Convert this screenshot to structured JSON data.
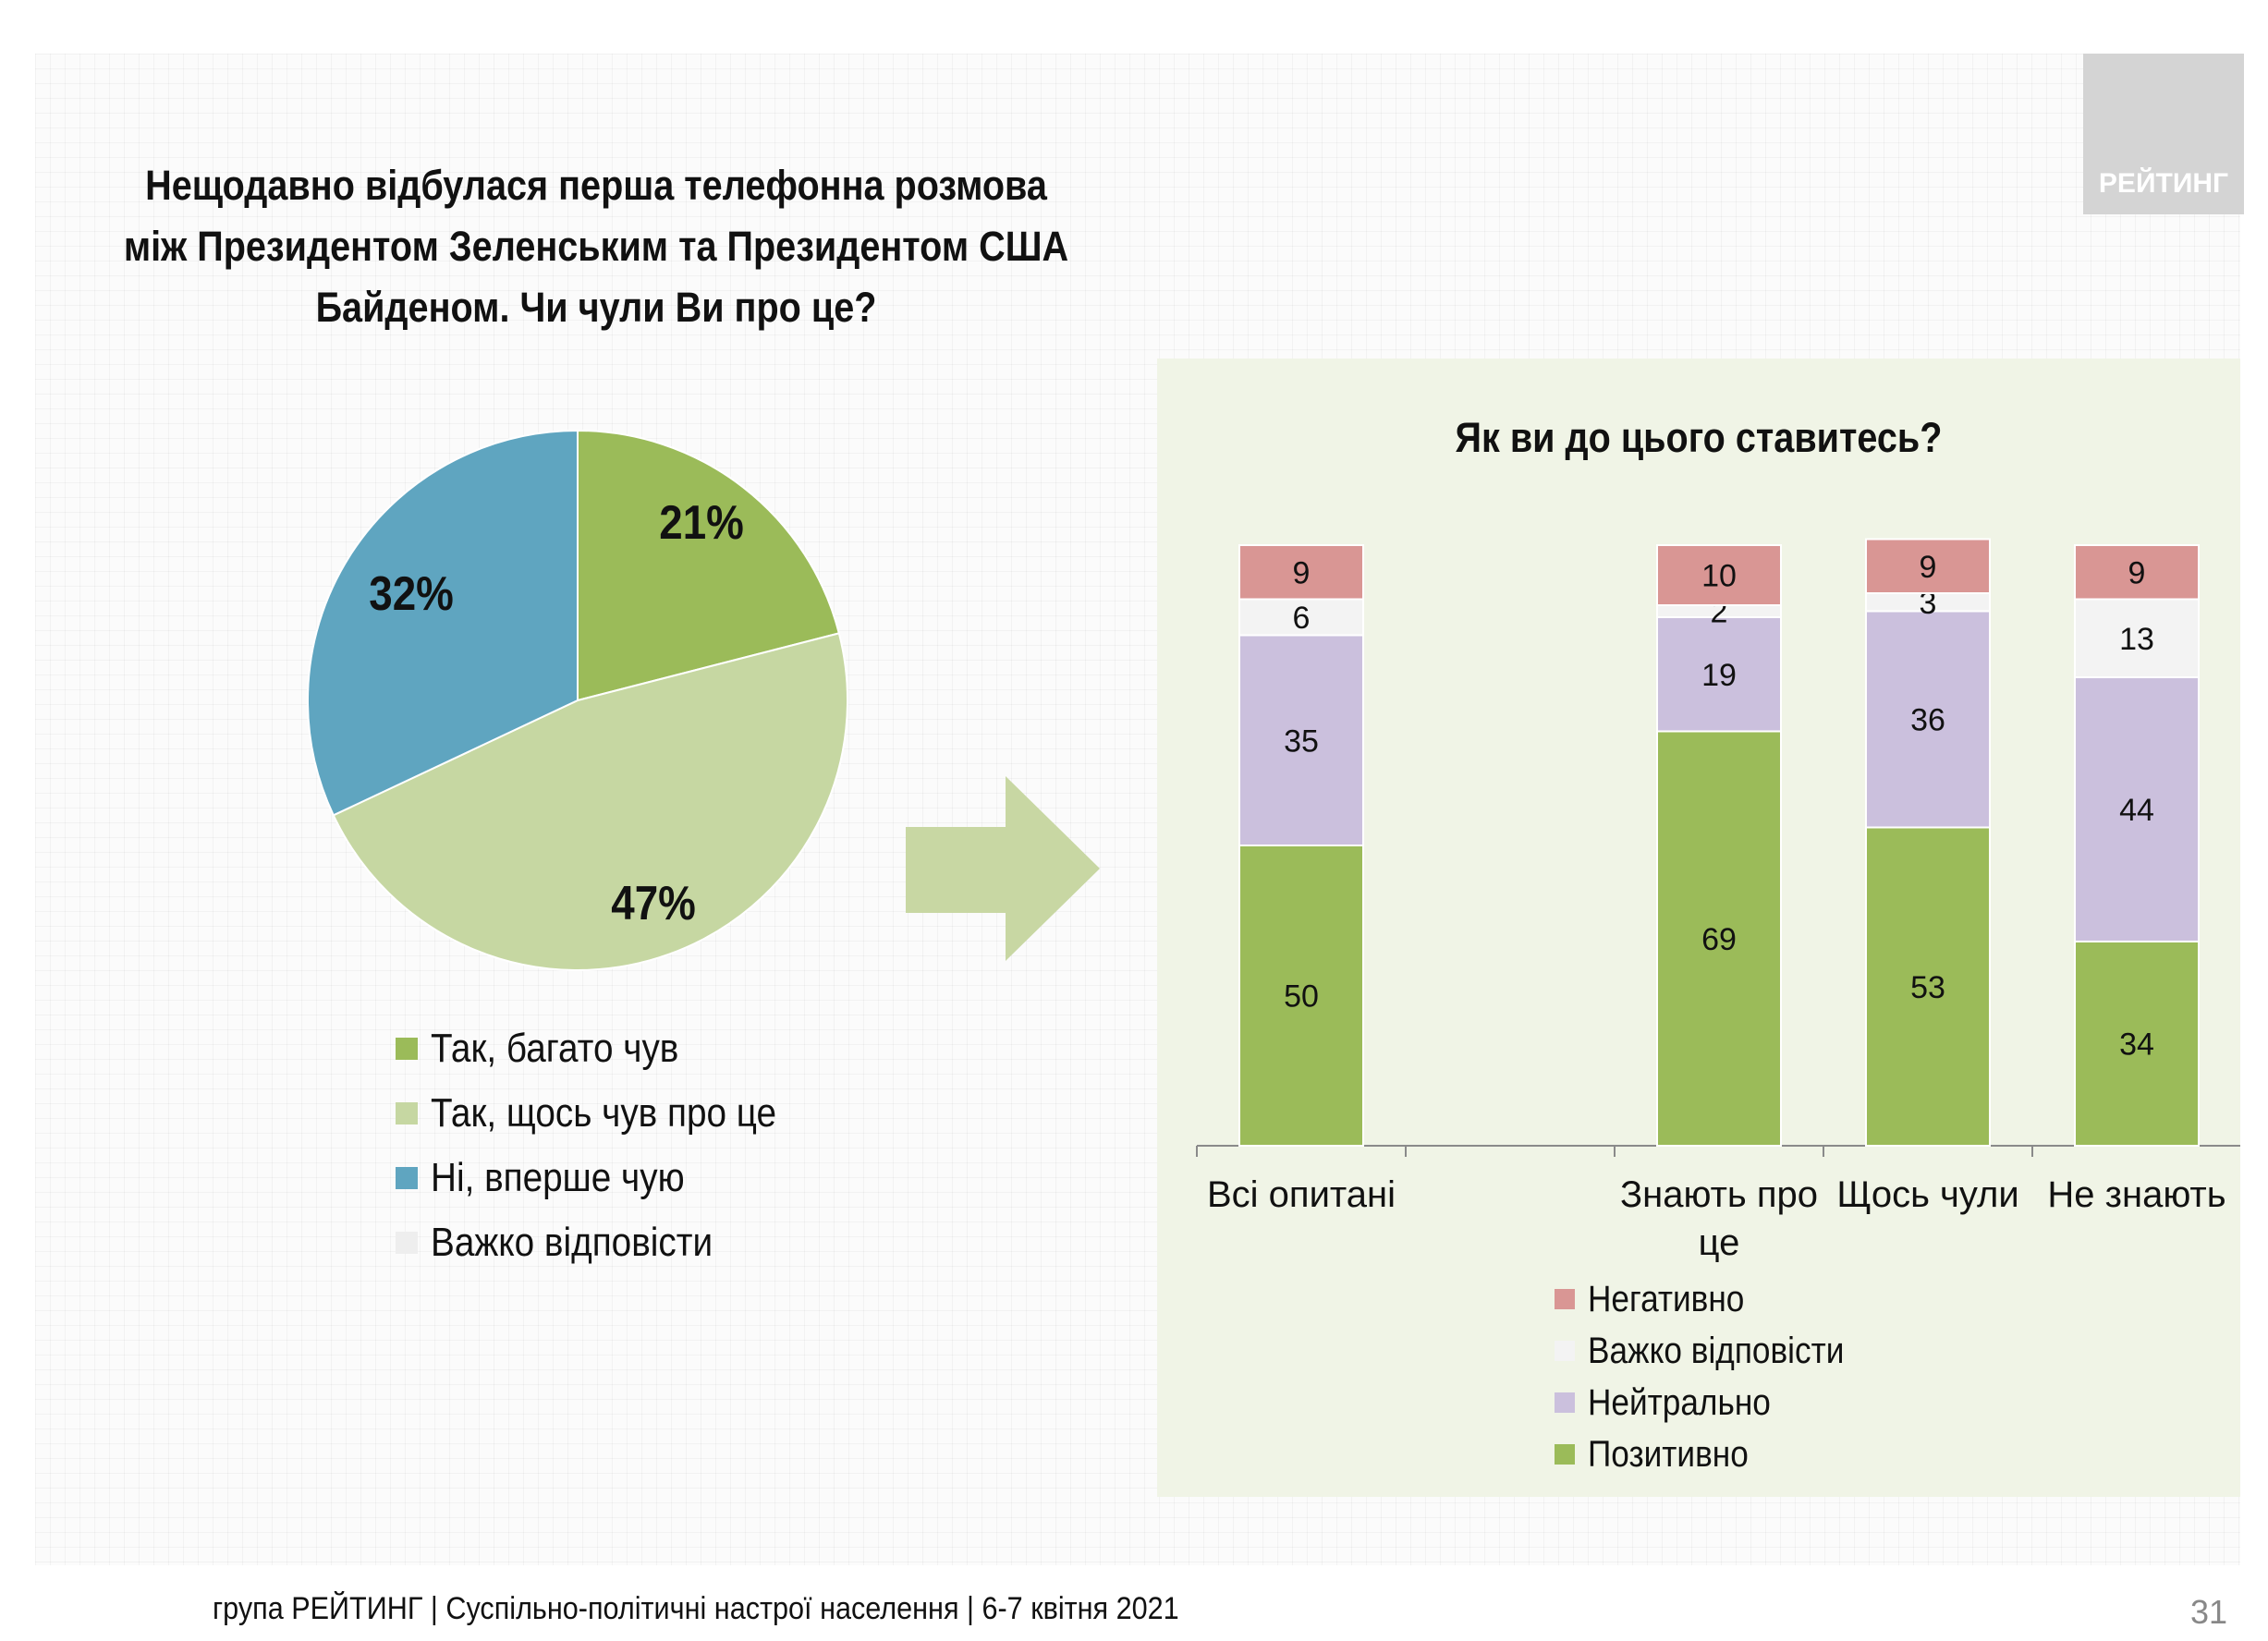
{
  "logo_text": "РЕЙТИНГ",
  "title_lines": [
    "Нещодавно відбулася перша телефонна розмова",
    "між Президентом Зеленським та Президентом США",
    "Байденом. Чи чули Ви про це?"
  ],
  "footer": "група РЕЙТИНГ | Суспільно-політичні настрої населення | 6-7 квітня 2021",
  "page_number": "31",
  "chart_data": [
    {
      "type": "pie",
      "title": "Нещодавно відбулася перша телефонна розмова між Президентом Зеленським та Президентом США Байденом. Чи чули Ви про це?",
      "categories": [
        "Так, багато чув",
        "Так, щось чув про це",
        "Ні, вперше чую",
        "Важко відповісти"
      ],
      "values": [
        21,
        47,
        32,
        0
      ],
      "labels": [
        "21%",
        "47%",
        "32%",
        ""
      ],
      "colors": [
        "#9bbb59",
        "#c6d7a2",
        "#5fa5c0",
        "#eeeeee"
      ],
      "legend": "bottom"
    },
    {
      "type": "bar",
      "stacked": true,
      "title": "Як ви до цього ставитесь?",
      "categories": [
        "Всі опитані",
        "",
        "Знають про це",
        "Щось чули",
        "Не знають"
      ],
      "category_lines": [
        [
          "Всі опитані"
        ],
        [
          ""
        ],
        [
          "Знають про",
          "це"
        ],
        [
          "Щось чули"
        ],
        [
          "Не знають"
        ]
      ],
      "series": [
        {
          "name": "Позитивно",
          "color": "#9bbb59",
          "values": [
            50,
            null,
            69,
            53,
            34
          ]
        },
        {
          "name": "Нейтрально",
          "color": "#cbc0dd",
          "values": [
            35,
            null,
            19,
            36,
            44
          ]
        },
        {
          "name": "Важко відповісти",
          "color": "#f3f3f3",
          "values": [
            6,
            null,
            2,
            3,
            13
          ]
        },
        {
          "name": "Негативно",
          "color": "#d99694",
          "values": [
            9,
            null,
            10,
            9,
            9
          ]
        }
      ],
      "legend_order": [
        "Негативно",
        "Важко відповісти",
        "Нейтрально",
        "Позитивно"
      ],
      "ylim": [
        0,
        100
      ],
      "grid": false,
      "legend": "bottom"
    }
  ]
}
